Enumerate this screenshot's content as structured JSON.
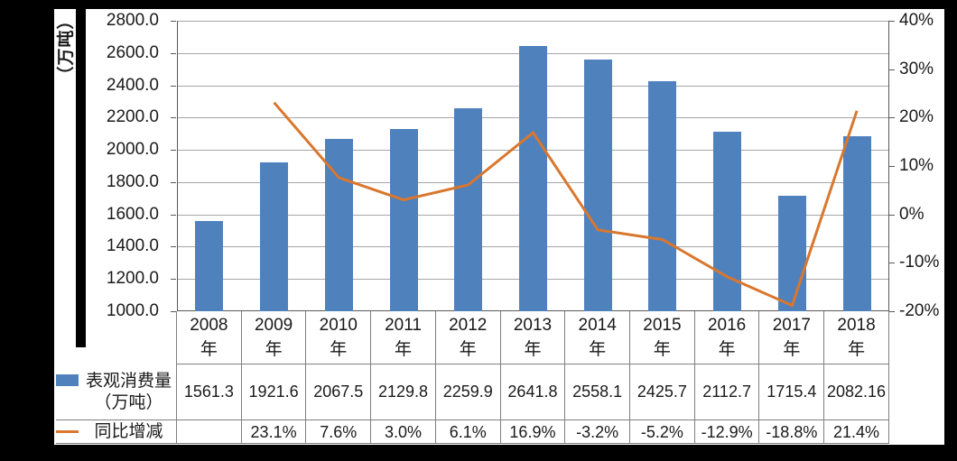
{
  "chart_data": {
    "type": "combo",
    "categories": [
      "2008",
      "2009",
      "2010",
      "2011",
      "2012",
      "2013",
      "2014",
      "2015",
      "2016",
      "2017",
      "2018"
    ],
    "category_suffix": "年",
    "series": [
      {
        "name": "表观消费量（万吨）",
        "type": "bar",
        "axis": "left",
        "color": "#4F81BD",
        "values": [
          1561.3,
          1921.6,
          2067.5,
          2129.8,
          2259.9,
          2641.8,
          2558.1,
          2425.7,
          2112.7,
          1715.4,
          2082.16
        ],
        "display_values": [
          "1561.3",
          "1921.6",
          "2067.5",
          "2129.8",
          "2259.9",
          "2641.8",
          "2558.1",
          "2425.7",
          "2112.7",
          "1715.4",
          "2082.16"
        ]
      },
      {
        "name": "同比增减",
        "type": "line",
        "axis": "right",
        "color": "#D9772E",
        "values": [
          null,
          23.1,
          7.6,
          3.0,
          6.1,
          16.9,
          -3.2,
          -5.2,
          -12.9,
          -18.8,
          21.4
        ],
        "display_values": [
          "",
          "23.1%",
          "7.6%",
          "3.0%",
          "6.1%",
          "16.9%",
          "-3.2%",
          "-5.2%",
          "-12.9%",
          "-18.8%",
          "21.4%"
        ]
      }
    ],
    "left_axis": {
      "title": "（万吨）",
      "min": 1000,
      "max": 2800,
      "tick_labels": [
        "2800.0",
        "2600.0",
        "2400.0",
        "2200.0",
        "2000.0",
        "1800.0",
        "1600.0",
        "1400.0",
        "1200.0",
        "1000.0"
      ]
    },
    "right_axis": {
      "min": -20,
      "max": 40,
      "tick_labels": [
        "40%",
        "30%",
        "20%",
        "10%",
        "0%",
        "-10%",
        "-20%"
      ]
    },
    "legend": [
      {
        "series": "bar",
        "lines": [
          "表观消费量",
          "（万吨）"
        ]
      },
      {
        "series": "line",
        "lines": [
          "同比增减"
        ]
      }
    ],
    "grid": "horizontal",
    "legend_position": "table-left"
  },
  "colors": {
    "bar": "#4F81BD",
    "line": "#D9772E",
    "gridline": "#A6A6A6",
    "axis": "#595959",
    "table_border": "#7F7F7F",
    "background": "#000000",
    "panel": "#FFFFFF",
    "text": "#1A1A1A"
  }
}
